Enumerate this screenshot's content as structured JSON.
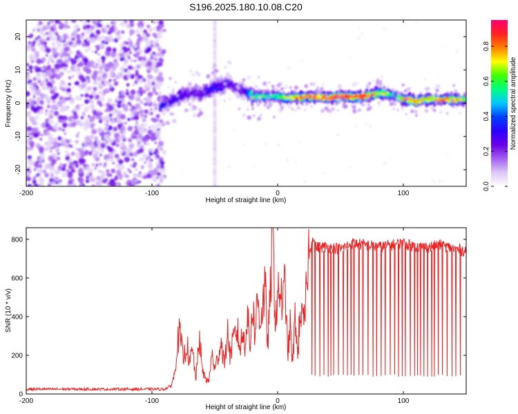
{
  "title": "S196.2025.180.10.08.C20",
  "chart_data": [
    {
      "type": "heatmap",
      "xlabel": "Height of straight line (km)",
      "ylabel": "Frequency (Hz)",
      "xlim": [
        -200,
        150
      ],
      "ylim": [
        -25,
        25
      ],
      "xticks": [
        -200,
        -100,
        0,
        100
      ],
      "yticks": [
        -20,
        -10,
        0,
        10,
        20
      ],
      "colorbar": {
        "label": "Normalized spectral amplitude",
        "range": [
          0,
          0.95
        ],
        "ticks": [
          0.0,
          0.2,
          0.4,
          0.6,
          0.8
        ],
        "tick_labels": [
          "0.0",
          "0.2",
          "0.4",
          "0.6",
          "0.8"
        ],
        "colors": [
          "#ffffff",
          "#dcc6f5",
          "#a35ef0",
          "#6a00e8",
          "#2a00ff",
          "#0040ff",
          "#00c8ff",
          "#00ff80",
          "#40ff00",
          "#ffff00",
          "#ff8000",
          "#ff2020",
          "#ff0070"
        ]
      },
      "noise_region_x": [
        -200,
        -90
      ],
      "vertical_artifact_x": -50,
      "ridge": {
        "x": [
          -93,
          -85,
          -78,
          -70,
          -62,
          -55,
          -50,
          -45,
          -40,
          -35,
          -30,
          -25,
          -20,
          -15,
          -10,
          -5,
          0,
          10,
          20,
          30,
          40,
          50,
          60,
          70,
          75,
          80,
          85,
          90,
          95,
          100,
          105,
          110,
          115,
          120,
          130,
          140,
          150
        ],
        "frequency_hz": [
          -1,
          1,
          2,
          3,
          3,
          4,
          5,
          5,
          6,
          5,
          4,
          3,
          2,
          2,
          2,
          2,
          2,
          1.5,
          1.8,
          2,
          1.5,
          2,
          1.8,
          2,
          2.5,
          3,
          3,
          2.5,
          2,
          1,
          1,
          0.5,
          1,
          1.2,
          1,
          1,
          1
        ],
        "peak_amplitude": [
          0.35,
          0.3,
          0.3,
          0.25,
          0.25,
          0.3,
          0.35,
          0.3,
          0.3,
          0.25,
          0.25,
          0.3,
          0.7,
          0.6,
          0.6,
          0.55,
          0.55,
          0.75,
          0.85,
          0.85,
          0.9,
          0.9,
          0.85,
          0.9,
          0.85,
          0.7,
          0.75,
          0.6,
          0.5,
          0.85,
          0.85,
          0.8,
          0.7,
          0.75,
          0.8,
          0.8,
          0.7
        ]
      }
    },
    {
      "type": "line",
      "xlabel": "Height of straight line (km)",
      "ylabel": "SNR (10 * v/v)",
      "xlim": [
        -200,
        150
      ],
      "ylim": [
        0,
        860
      ],
      "xticks": [
        -200,
        -100,
        0,
        100
      ],
      "yticks": [
        0,
        200,
        400,
        600,
        800
      ],
      "series": [
        {
          "color": "#ee2020",
          "x": [
            -200,
            -180,
            -160,
            -140,
            -120,
            -100,
            -90,
            -85,
            -82,
            -80,
            -78,
            -75,
            -72,
            -70,
            -68,
            -65,
            -62,
            -60,
            -58,
            -55,
            -52,
            -50,
            -48,
            -45,
            -42,
            -40,
            -38,
            -35,
            -32,
            -30,
            -28,
            -26,
            -24,
            -22,
            -20,
            -18,
            -16,
            -14,
            -12,
            -10,
            -8,
            -6,
            -4,
            -2,
            0,
            2,
            4,
            6,
            8,
            10,
            12,
            14,
            16,
            18,
            20,
            22,
            24,
            26,
            28,
            30,
            40,
            50,
            60,
            70,
            80,
            90,
            100,
            110,
            120,
            130,
            140,
            150
          ],
          "values": [
            25,
            25,
            25,
            25,
            25,
            25,
            25,
            40,
            100,
            250,
            320,
            180,
            260,
            150,
            230,
            80,
            300,
            120,
            90,
            60,
            210,
            120,
            180,
            270,
            150,
            340,
            200,
            280,
            330,
            230,
            310,
            260,
            420,
            230,
            480,
            300,
            500,
            380,
            450,
            560,
            250,
            480,
            860,
            400,
            480,
            550,
            440,
            590,
            200,
            350,
            150,
            420,
            180,
            460,
            350,
            410,
            700,
            740,
            820,
            760,
            760,
            750,
            780,
            770,
            760,
            770,
            780,
            760,
            760,
            770,
            750,
            740
          ]
        }
      ],
      "dropouts": {
        "x_range": [
          27,
          147
        ],
        "low_value": 90
      }
    }
  ]
}
